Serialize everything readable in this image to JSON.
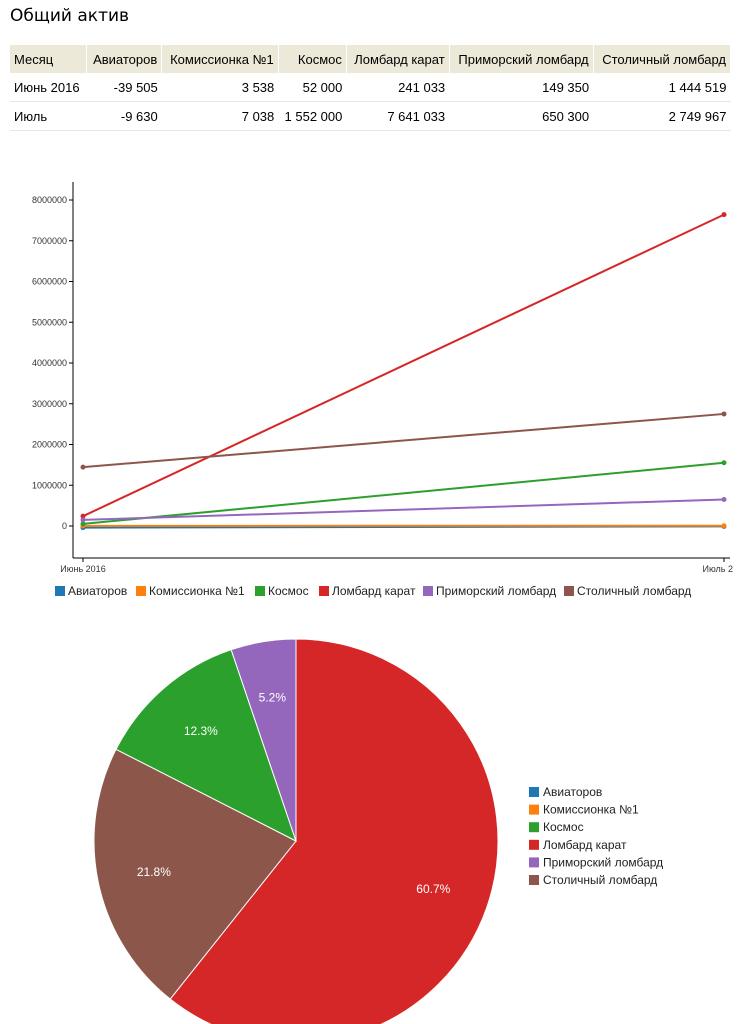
{
  "page": {
    "title": "Общий актив"
  },
  "table": {
    "headers": [
      "Месяц",
      "Авиаторов",
      "Комиссионка №1",
      "Космос",
      "Ломбард карат",
      "Приморский ломбард",
      "Столичный ломбард"
    ],
    "rows": [
      [
        "Июнь 2016",
        "-39 505",
        "3 538",
        "52 000",
        "241 033",
        "149 350",
        "1 444 519"
      ],
      [
        "Июль",
        "-9 630",
        "7 038",
        "1 552 000",
        "7 641 033",
        "650 300",
        "2 749 967"
      ]
    ]
  },
  "chart_data": [
    {
      "type": "line",
      "x": [
        "Июнь 2016",
        "Июль 2"
      ],
      "ylim": [
        -300000,
        8400000
      ],
      "yticks": [
        0,
        1000000,
        2000000,
        3000000,
        4000000,
        5000000,
        6000000,
        7000000,
        8000000
      ],
      "grid": false,
      "legend": "bottom",
      "series": [
        {
          "name": "Авиаторов",
          "color": "#1f77b4",
          "values": [
            -39505,
            -9630
          ]
        },
        {
          "name": "Комиссионка №1",
          "color": "#ff7f0e",
          "values": [
            3538,
            7038
          ]
        },
        {
          "name": "Космос",
          "color": "#2ca02c",
          "values": [
            52000,
            1552000
          ]
        },
        {
          "name": "Ломбард карат",
          "color": "#d62728",
          "values": [
            241033,
            7641033
          ]
        },
        {
          "name": "Приморский ломбард",
          "color": "#9467bd",
          "values": [
            149350,
            650300
          ]
        },
        {
          "name": "Столичный ломбард",
          "color": "#8c564b",
          "values": [
            1444519,
            2749967
          ]
        }
      ]
    },
    {
      "type": "pie",
      "legend": "right",
      "slices": [
        {
          "name": "Авиаторов",
          "color": "#1f77b4",
          "value": 0,
          "label": ""
        },
        {
          "name": "Комиссионка №1",
          "color": "#ff7f0e",
          "value": 0,
          "label": ""
        },
        {
          "name": "Космос",
          "color": "#2ca02c",
          "value": 12.3,
          "label": "12.3%"
        },
        {
          "name": "Ломбард карат",
          "color": "#d62728",
          "value": 60.7,
          "label": "60.7%"
        },
        {
          "name": "Приморский ломбард",
          "color": "#9467bd",
          "value": 5.2,
          "label": "5.2%"
        },
        {
          "name": "Столичный ломбард",
          "color": "#8c564b",
          "value": 21.8,
          "label": "21.8%"
        }
      ]
    }
  ]
}
